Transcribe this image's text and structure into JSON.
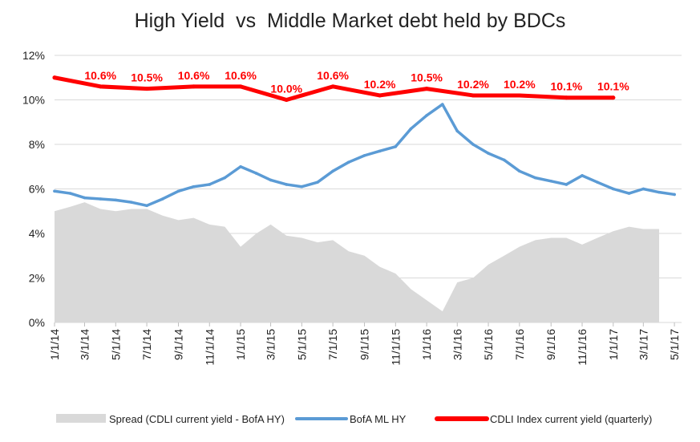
{
  "chart_data": {
    "type": "line",
    "title": "High Yield  vs  Middle Market debt held by BDCs",
    "xlabel": "",
    "ylabel": "",
    "ylim": [
      0,
      12
    ],
    "ytick_labels": [
      "0%",
      "2%",
      "4%",
      "6%",
      "8%",
      "10%",
      "12%"
    ],
    "ytick_values": [
      0,
      2,
      4,
      6,
      8,
      10,
      12
    ],
    "xlim": [
      "2014-01-01",
      "2017-05-15"
    ],
    "xtick_labels": [
      "1/1/14",
      "3/1/14",
      "5/1/14",
      "7/1/14",
      "9/1/14",
      "11/1/14",
      "1/1/15",
      "3/1/15",
      "5/1/15",
      "7/1/15",
      "9/1/15",
      "11/1/15",
      "1/1/16",
      "3/1/16",
      "5/1/16",
      "7/1/16",
      "9/1/16",
      "11/1/16",
      "1/1/17",
      "3/1/17",
      "5/1/17"
    ],
    "xtick_dates": [
      "2014-01-01",
      "2014-03-01",
      "2014-05-01",
      "2014-07-01",
      "2014-09-01",
      "2014-11-01",
      "2015-01-01",
      "2015-03-01",
      "2015-05-01",
      "2015-07-01",
      "2015-09-01",
      "2015-11-01",
      "2016-01-01",
      "2016-03-01",
      "2016-05-01",
      "2016-07-01",
      "2016-09-01",
      "2016-11-01",
      "2017-01-01",
      "2017-03-01",
      "2017-05-01"
    ],
    "grid": true,
    "legend_position": "bottom",
    "series": [
      {
        "name": "Spread (CDLI current yield - BofA HY)",
        "kind": "area",
        "color": "#d9d9d9",
        "points": [
          [
            "2014-01-01",
            5.0
          ],
          [
            "2014-02-01",
            5.2
          ],
          [
            "2014-03-01",
            5.4
          ],
          [
            "2014-04-01",
            5.1
          ],
          [
            "2014-05-01",
            5.0
          ],
          [
            "2014-06-01",
            5.1
          ],
          [
            "2014-07-01",
            5.1
          ],
          [
            "2014-08-01",
            4.8
          ],
          [
            "2014-09-01",
            4.6
          ],
          [
            "2014-10-01",
            4.7
          ],
          [
            "2014-11-01",
            4.4
          ],
          [
            "2014-12-01",
            4.3
          ],
          [
            "2015-01-01",
            3.4
          ],
          [
            "2015-02-01",
            4.0
          ],
          [
            "2015-03-01",
            4.4
          ],
          [
            "2015-04-01",
            3.9
          ],
          [
            "2015-05-01",
            3.8
          ],
          [
            "2015-06-01",
            3.6
          ],
          [
            "2015-07-01",
            3.7
          ],
          [
            "2015-08-01",
            3.2
          ],
          [
            "2015-09-01",
            3.0
          ],
          [
            "2015-10-01",
            2.5
          ],
          [
            "2015-11-01",
            2.2
          ],
          [
            "2015-12-01",
            1.5
          ],
          [
            "2016-01-01",
            1.0
          ],
          [
            "2016-02-01",
            0.5
          ],
          [
            "2016-03-01",
            1.8
          ],
          [
            "2016-04-01",
            2.0
          ],
          [
            "2016-05-01",
            2.6
          ],
          [
            "2016-06-01",
            3.0
          ],
          [
            "2016-07-01",
            3.4
          ],
          [
            "2016-08-01",
            3.7
          ],
          [
            "2016-09-01",
            3.8
          ],
          [
            "2016-10-01",
            3.8
          ],
          [
            "2016-11-01",
            3.5
          ],
          [
            "2016-12-01",
            3.8
          ],
          [
            "2017-01-01",
            4.1
          ],
          [
            "2017-02-01",
            4.3
          ],
          [
            "2017-03-01",
            4.2
          ],
          [
            "2017-04-01",
            4.2
          ]
        ]
      },
      {
        "name": "BofA ML HY",
        "kind": "line",
        "color": "#5b9bd5",
        "points": [
          [
            "2014-01-01",
            5.9
          ],
          [
            "2014-02-01",
            5.8
          ],
          [
            "2014-03-01",
            5.6
          ],
          [
            "2014-04-01",
            5.55
          ],
          [
            "2014-05-01",
            5.5
          ],
          [
            "2014-06-01",
            5.4
          ],
          [
            "2014-07-01",
            5.25
          ],
          [
            "2014-08-01",
            5.55
          ],
          [
            "2014-09-01",
            5.9
          ],
          [
            "2014-10-01",
            6.1
          ],
          [
            "2014-11-01",
            6.2
          ],
          [
            "2014-12-01",
            6.5
          ],
          [
            "2015-01-01",
            7.0
          ],
          [
            "2015-02-01",
            6.7
          ],
          [
            "2015-03-01",
            6.4
          ],
          [
            "2015-04-01",
            6.2
          ],
          [
            "2015-05-01",
            6.1
          ],
          [
            "2015-06-01",
            6.3
          ],
          [
            "2015-07-01",
            6.8
          ],
          [
            "2015-08-01",
            7.2
          ],
          [
            "2015-09-01",
            7.5
          ],
          [
            "2015-10-01",
            7.7
          ],
          [
            "2015-11-01",
            7.9
          ],
          [
            "2015-12-01",
            8.7
          ],
          [
            "2016-01-01",
            9.3
          ],
          [
            "2016-02-01",
            9.8
          ],
          [
            "2016-03-01",
            8.6
          ],
          [
            "2016-04-01",
            8.0
          ],
          [
            "2016-05-01",
            7.6
          ],
          [
            "2016-06-01",
            7.3
          ],
          [
            "2016-07-01",
            6.8
          ],
          [
            "2016-08-01",
            6.5
          ],
          [
            "2016-09-01",
            6.35
          ],
          [
            "2016-10-01",
            6.2
          ],
          [
            "2016-11-01",
            6.6
          ],
          [
            "2016-12-01",
            6.3
          ],
          [
            "2017-01-01",
            6.0
          ],
          [
            "2017-02-01",
            5.8
          ],
          [
            "2017-03-01",
            6.0
          ],
          [
            "2017-04-01",
            5.85
          ],
          [
            "2017-05-01",
            5.75
          ]
        ]
      },
      {
        "name": "CDLI Index current yield (quarterly)",
        "kind": "line",
        "color": "#ff0000",
        "points": [
          [
            "2014-01-01",
            11.0
          ],
          [
            "2014-04-01",
            10.6
          ],
          [
            "2014-07-01",
            10.5
          ],
          [
            "2014-10-01",
            10.6
          ],
          [
            "2015-01-01",
            10.6
          ],
          [
            "2015-04-01",
            10.0
          ],
          [
            "2015-07-01",
            10.6
          ],
          [
            "2015-10-01",
            10.2
          ],
          [
            "2016-01-01",
            10.5
          ],
          [
            "2016-04-01",
            10.2
          ],
          [
            "2016-07-01",
            10.2
          ],
          [
            "2016-10-01",
            10.1
          ],
          [
            "2017-01-01",
            10.1
          ]
        ],
        "data_labels": [
          [
            "2014-04-01",
            "10.6%"
          ],
          [
            "2014-07-01",
            "10.5%"
          ],
          [
            "2014-10-01",
            "10.6%"
          ],
          [
            "2015-01-01",
            "10.6%"
          ],
          [
            "2015-04-01",
            "10.0%"
          ],
          [
            "2015-07-01",
            "10.6%"
          ],
          [
            "2015-10-01",
            "10.2%"
          ],
          [
            "2016-01-01",
            "10.5%"
          ],
          [
            "2016-04-01",
            "10.2%"
          ],
          [
            "2016-07-01",
            "10.2%"
          ],
          [
            "2016-10-01",
            "10.1%"
          ],
          [
            "2017-01-01",
            "10.1%"
          ]
        ]
      }
    ]
  }
}
